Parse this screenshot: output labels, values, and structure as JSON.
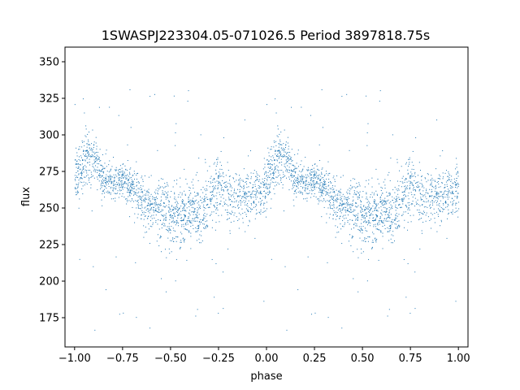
{
  "chart_data": {
    "type": "scatter",
    "title": "1SWASPJ223304.05-071026.5 Period 3897818.75s",
    "xlabel": "phase",
    "ylabel": "flux",
    "xlim": [
      -1.05,
      1.05
    ],
    "ylim": [
      155,
      360
    ],
    "x_ticks": [
      -1.0,
      -0.75,
      -0.5,
      -0.25,
      0.0,
      0.25,
      0.5,
      0.75,
      1.0
    ],
    "x_tick_labels": [
      "−1.00",
      "−0.75",
      "−0.50",
      "−0.25",
      "0.00",
      "0.25",
      "0.50",
      "0.75",
      "1.00"
    ],
    "y_ticks": [
      175,
      200,
      225,
      250,
      275,
      300,
      325,
      350
    ],
    "y_tick_labels": [
      "175",
      "200",
      "225",
      "250",
      "275",
      "300",
      "325",
      "350"
    ],
    "grid": false,
    "series": [
      {
        "color": "#1f77b4",
        "marker_size_note": "tiny dots",
        "trend": {
          "phase": [
            0.0,
            0.05,
            0.1,
            0.15,
            0.2,
            0.25,
            0.3,
            0.35,
            0.4,
            0.45,
            0.5,
            0.55,
            0.6,
            0.65,
            0.7,
            0.75,
            0.8,
            0.85,
            0.9,
            0.95,
            1.0
          ],
          "flux": [
            270,
            282,
            285,
            272,
            268,
            270,
            263,
            255,
            252,
            248,
            245,
            245,
            248,
            245,
            255,
            265,
            258,
            258,
            258,
            262,
            265
          ]
        },
        "spread": {
          "phase": [
            0.0,
            0.05,
            0.1,
            0.15,
            0.2,
            0.25,
            0.3,
            0.35,
            0.4,
            0.45,
            0.5,
            0.55,
            0.6,
            0.65,
            0.7,
            0.75,
            0.8,
            0.85,
            0.9,
            0.95,
            1.0
          ],
          "flux_sd": [
            12,
            14,
            14,
            10,
            8,
            9,
            10,
            12,
            14,
            16,
            16,
            16,
            15,
            14,
            14,
            18,
            16,
            12,
            12,
            13,
            12
          ]
        },
        "outlier_range": [
          165,
          345
        ],
        "mirrored_phase_range": [
          -1.0,
          1.0
        ]
      }
    ]
  }
}
